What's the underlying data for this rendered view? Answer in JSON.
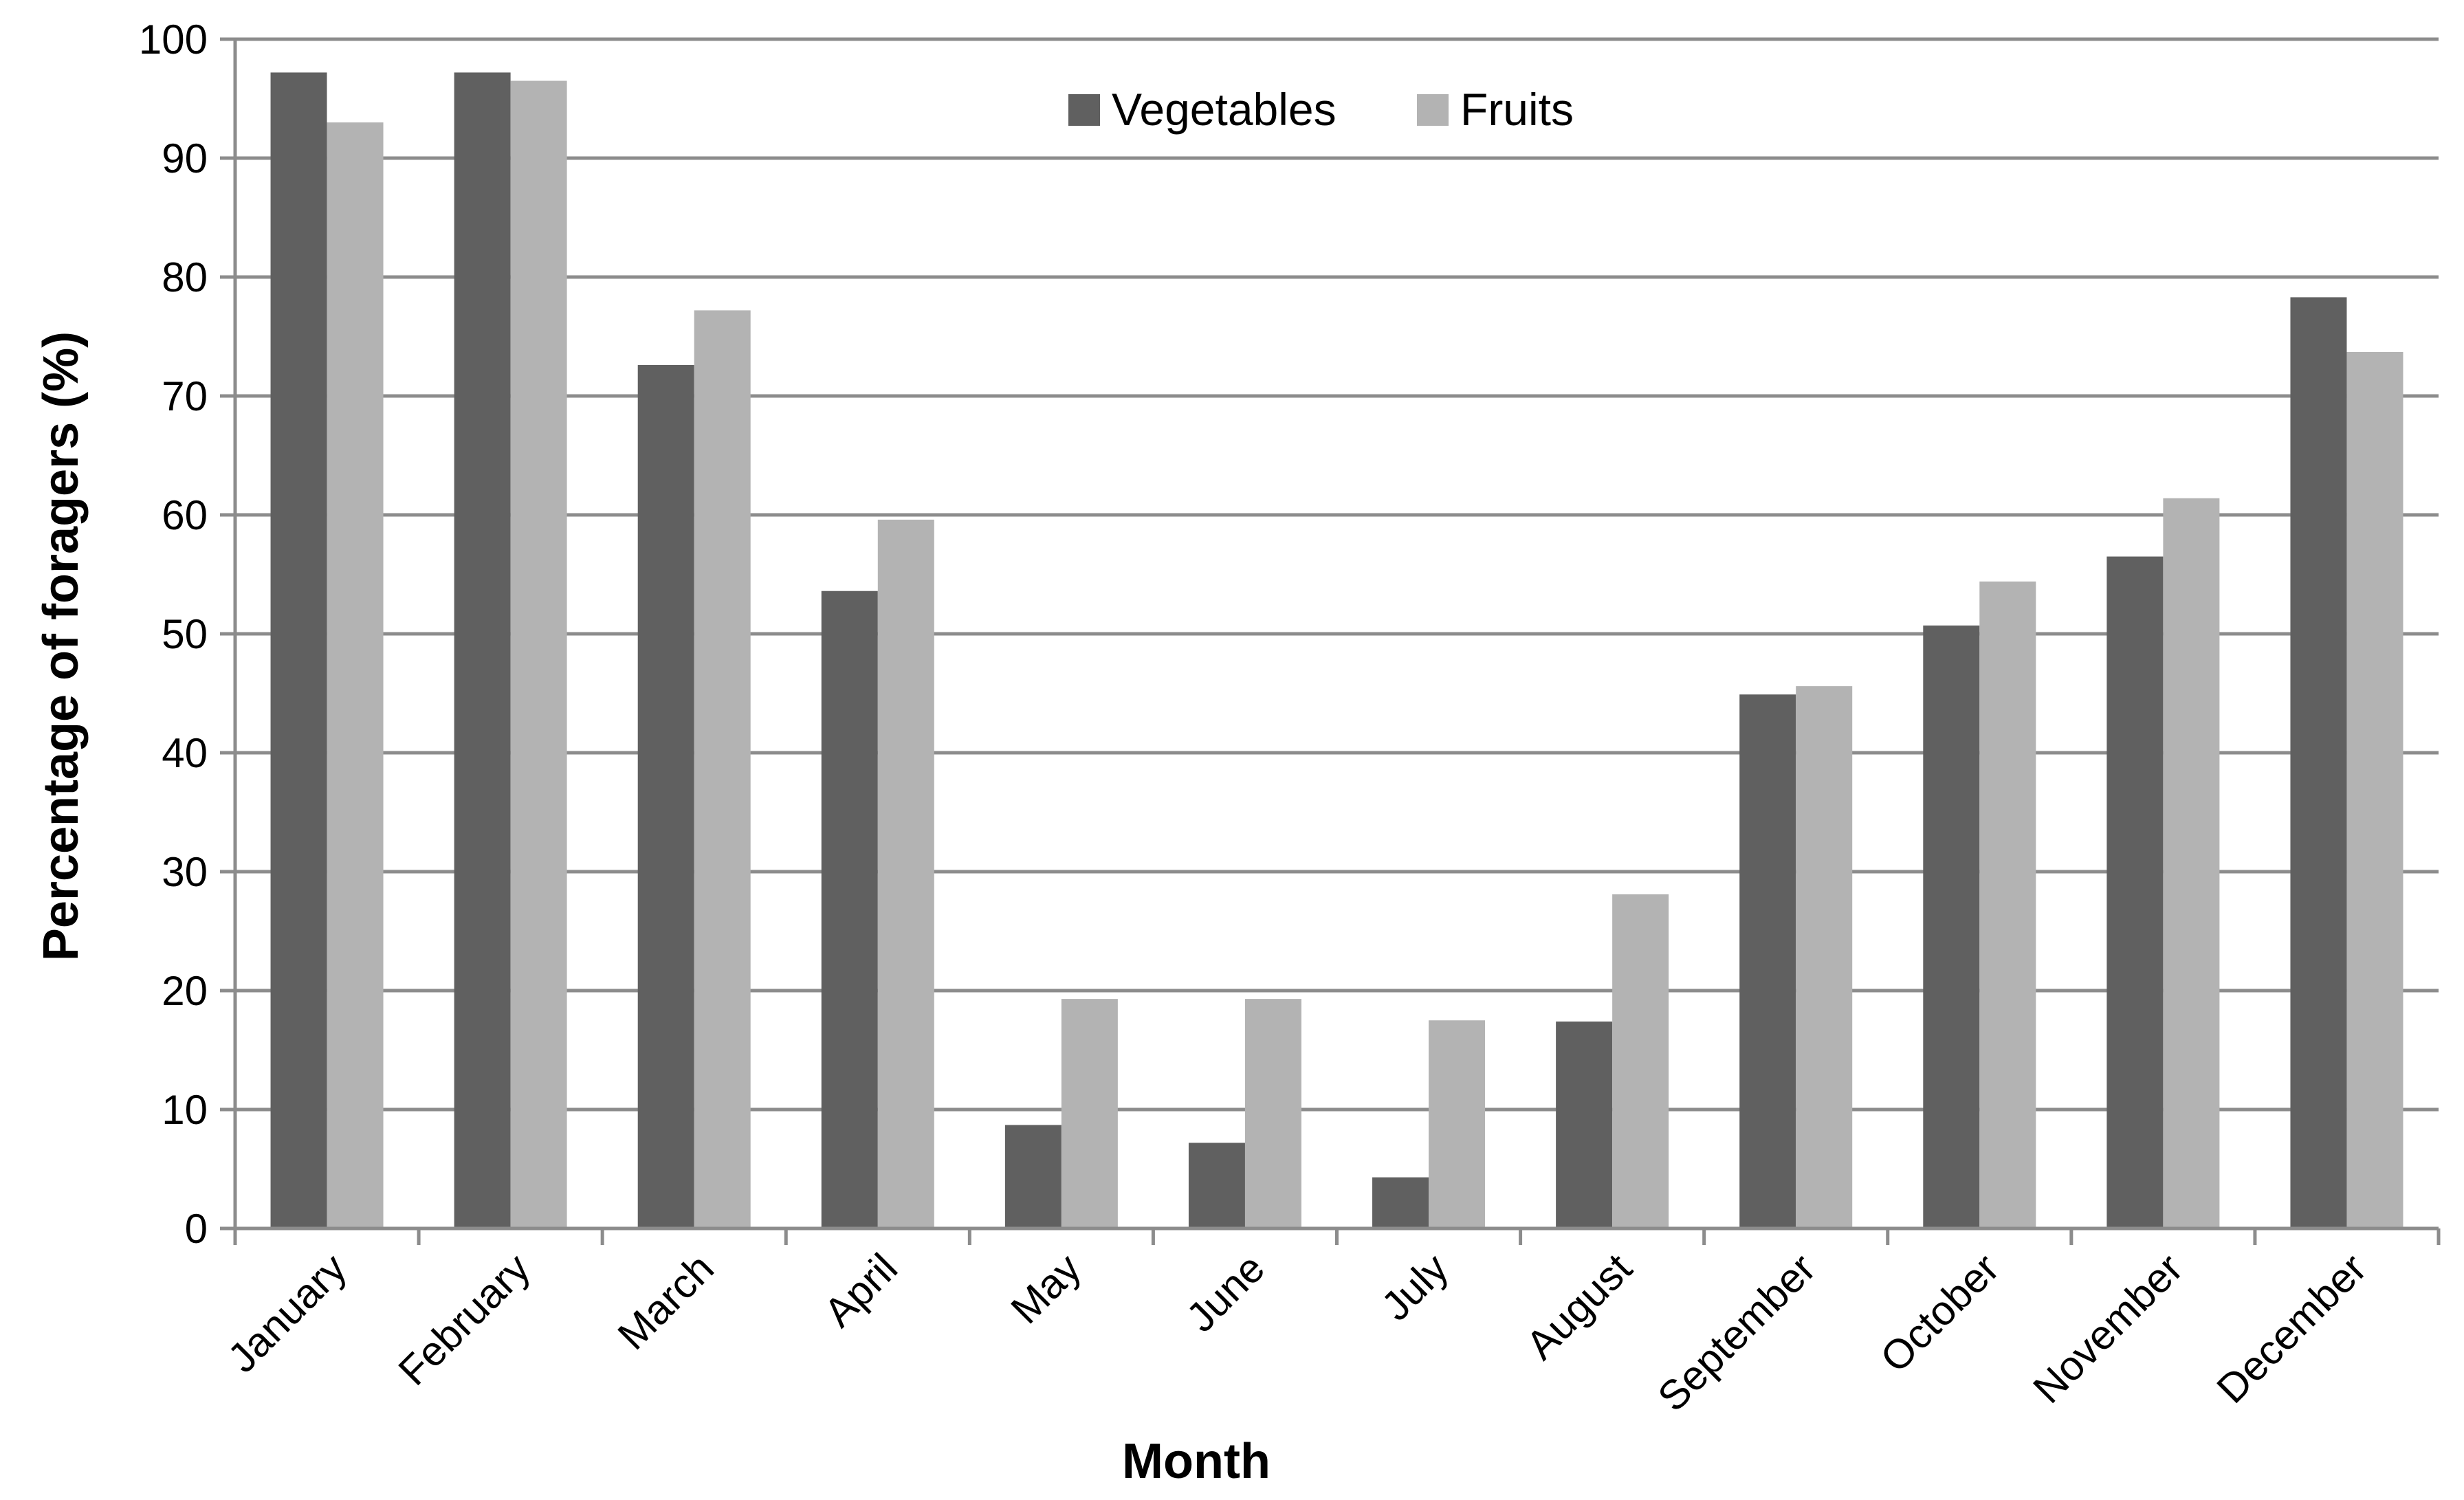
{
  "chart_data": {
    "type": "bar",
    "title": "",
    "xlabel": "Month",
    "ylabel": "Percentage of foragers (%)",
    "ylim": [
      0,
      100
    ],
    "yticks": [
      0,
      10,
      20,
      30,
      40,
      50,
      60,
      70,
      80,
      90,
      100
    ],
    "grid": true,
    "legend_position": "top-center",
    "categories": [
      "January",
      "February",
      "March",
      "April",
      "May",
      "June",
      "July",
      "August",
      "September",
      "October",
      "November",
      "December"
    ],
    "series": [
      {
        "name": "Vegetables",
        "color": "#606060",
        "values": [
          97.2,
          97.2,
          72.6,
          53.6,
          8.7,
          7.2,
          4.3,
          17.4,
          44.9,
          50.7,
          56.5,
          78.3
        ]
      },
      {
        "name": "Fruits",
        "color": "#b3b3b3",
        "values": [
          93.0,
          96.5,
          77.2,
          59.6,
          19.3,
          19.3,
          17.5,
          28.1,
          45.6,
          54.4,
          61.4,
          73.7
        ]
      }
    ]
  }
}
